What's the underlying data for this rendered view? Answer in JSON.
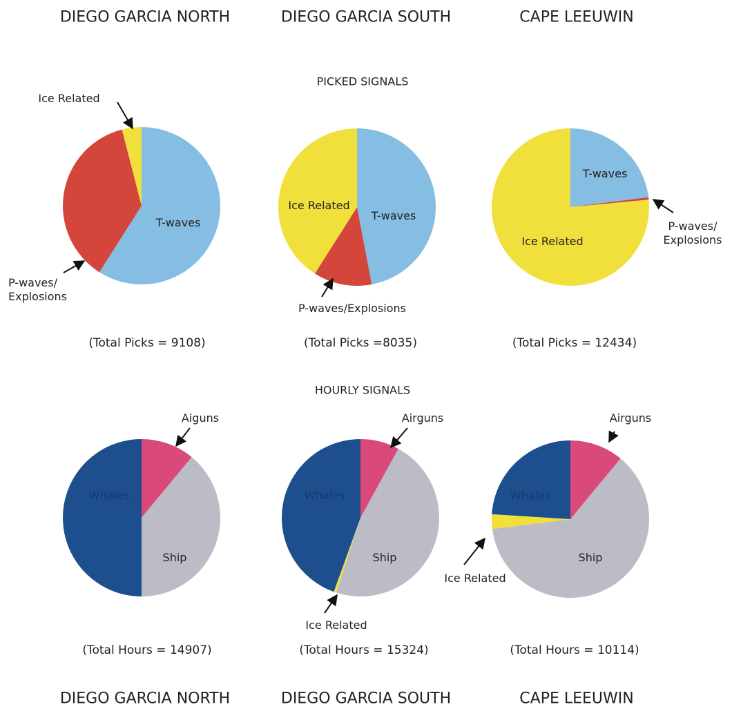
{
  "header": {
    "stations": [
      "DIEGO GARCIA NORTH",
      "DIEGO GARCIA SOUTH",
      "CAPE LEEUWIN"
    ]
  },
  "sections": [
    "PICKED SIGNALS",
    "HOURLY SIGNALS"
  ],
  "chart_data": [
    {
      "type": "pie",
      "annotation": "(Total Picks = 9108)",
      "categories": [
        "T-waves",
        "P-waves/\nExplosions",
        "Ice Related"
      ],
      "values": [
        59,
        37,
        4
      ],
      "colors": [
        "#86bde3",
        "#d4453b",
        "#f1e03c"
      ]
    },
    {
      "type": "pie",
      "annotation": "(Total Picks =8035)",
      "categories": [
        "T-waves",
        "P-waves/Explosions",
        "Ice Related"
      ],
      "values": [
        47,
        12,
        41
      ],
      "colors": [
        "#86bde3",
        "#d4453b",
        "#f1e03c"
      ]
    },
    {
      "type": "pie",
      "annotation": "(Total Picks = 12434)",
      "categories": [
        "T-waves",
        "P-waves/\nExplosions",
        "Ice Related"
      ],
      "values": [
        23,
        0.5,
        76.5
      ],
      "colors": [
        "#86bde3",
        "#d4453b",
        "#f1e03c"
      ]
    },
    {
      "type": "pie",
      "annotation": "(Total Hours = 14907)",
      "categories": [
        "Aiguns",
        "Ship",
        "Whales"
      ],
      "values": [
        11,
        39,
        50
      ],
      "colors": [
        "#d94a7a",
        "#bcbcc6",
        "#1d4f8e"
      ]
    },
    {
      "type": "pie",
      "annotation": "(Total Hours = 15324)",
      "categories": [
        "Airguns",
        "Ship",
        "Ice Related",
        "Whales"
      ],
      "values": [
        8,
        47,
        0.5,
        44.5
      ],
      "colors": [
        "#d94a7a",
        "#bcbcc6",
        "#f1e03c",
        "#1d4f8e"
      ]
    },
    {
      "type": "pie",
      "annotation": "(Total Hours = 10114)",
      "categories": [
        "Airguns",
        "Ship",
        "Ice Related",
        "Whales"
      ],
      "values": [
        11,
        62,
        3,
        24
      ],
      "colors": [
        "#d94a7a",
        "#bcbcc6",
        "#f1e03c",
        "#1d4f8e"
      ]
    }
  ],
  "footer": {
    "stations": [
      "DIEGO GARCIA NORTH",
      "DIEGO GARCIA SOUTH",
      "CAPE LEEUWIN"
    ]
  }
}
